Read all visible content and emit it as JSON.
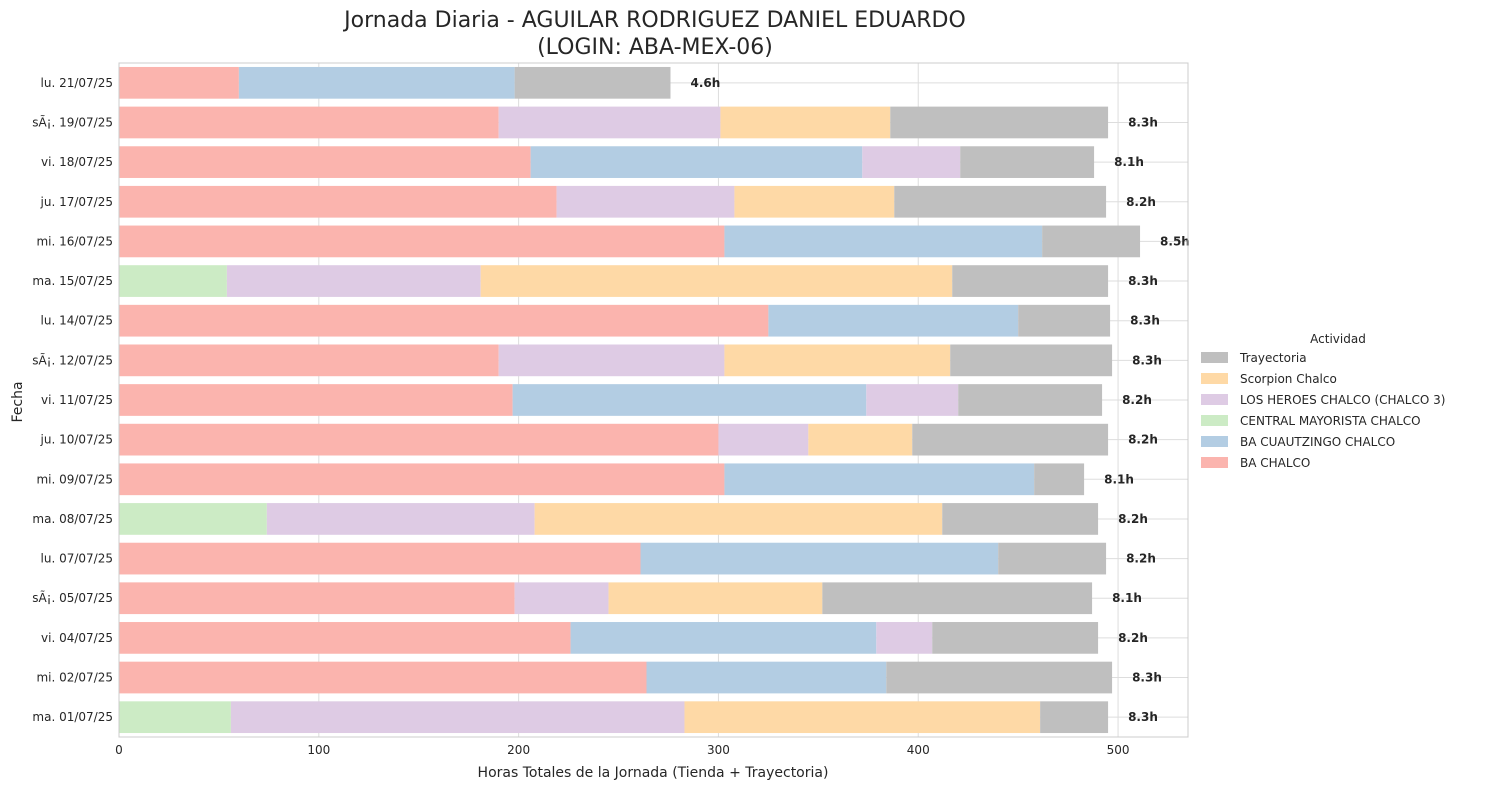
{
  "chart_data": {
    "type": "bar",
    "orientation": "horizontal",
    "stacked": true,
    "title": "Jornada Diaria - AGUILAR RODRIGUEZ DANIEL EDUARDO",
    "subtitle": "(LOGIN: ABA-MEX-06)",
    "xlabel": "Horas Totales de la Jornada (Tienda + Trayectoria)",
    "ylabel": "Fecha",
    "xlim": [
      0,
      535
    ],
    "xticks": [
      0,
      100,
      200,
      300,
      400,
      500
    ],
    "grid": true,
    "legend": {
      "title": "Actividad",
      "placement": "right",
      "order": [
        "Trayectoria",
        "Scorpion Chalco",
        "LOS HEROES CHALCO (CHALCO 3)",
        "CENTRAL MAYORISTA CHALCO",
        "BA CUAUTZINGO CHALCO",
        "BA CHALCO"
      ]
    },
    "colors": {
      "BA CHALCO": "#fbb4ae",
      "BA CUAUTZINGO CHALCO": "#b3cde3",
      "CENTRAL MAYORISTA CHALCO": "#ccebc5",
      "LOS HEROES CHALCO (CHALCO 3)": "#decbe4",
      "Scorpion Chalco": "#fed9a6",
      "Trayectoria": "#bfbfbf"
    },
    "stack_order": [
      "CENTRAL MAYORISTA CHALCO",
      "BA CHALCO",
      "BA CUAUTZINGO CHALCO",
      "LOS HEROES CHALCO (CHALCO 3)",
      "Scorpion Chalco",
      "Trayectoria"
    ],
    "categories": [
      "lu. 21/07/25",
      "sÃ¡. 19/07/25",
      "vi. 18/07/25",
      "ju. 17/07/25",
      "mi. 16/07/25",
      "ma. 15/07/25",
      "lu. 14/07/25",
      "sÃ¡. 12/07/25",
      "vi. 11/07/25",
      "ju. 10/07/25",
      "mi. 09/07/25",
      "ma. 08/07/25",
      "lu. 07/07/25",
      "sÃ¡. 05/07/25",
      "vi. 04/07/25",
      "mi. 02/07/25",
      "ma. 01/07/25"
    ],
    "totals_labels": [
      "4.6h",
      "8.3h",
      "8.1h",
      "8.2h",
      "8.5h",
      "8.3h",
      "8.3h",
      "8.3h",
      "8.2h",
      "8.2h",
      "8.1h",
      "8.2h",
      "8.2h",
      "8.1h",
      "8.2h",
      "8.3h",
      "8.3h"
    ],
    "series": [
      {
        "name": "CENTRAL MAYORISTA CHALCO",
        "values": [
          0,
          0,
          0,
          0,
          0,
          54,
          0,
          0,
          0,
          0,
          0,
          74,
          0,
          0,
          0,
          0,
          56
        ]
      },
      {
        "name": "BA CHALCO",
        "values": [
          60,
          190,
          206,
          219,
          303,
          0,
          325,
          190,
          197,
          300,
          303,
          0,
          261,
          198,
          226,
          264,
          0
        ]
      },
      {
        "name": "BA CUAUTZINGO CHALCO",
        "values": [
          138,
          0,
          166,
          0,
          159,
          0,
          125,
          0,
          177,
          0,
          155,
          0,
          179,
          0,
          153,
          120,
          0
        ]
      },
      {
        "name": "LOS HEROES CHALCO (CHALCO 3)",
        "values": [
          0,
          111,
          49,
          89,
          0,
          127,
          0,
          113,
          46,
          45,
          0,
          134,
          0,
          47,
          28,
          0,
          227
        ]
      },
      {
        "name": "Scorpion Chalco",
        "values": [
          0,
          85,
          0,
          80,
          0,
          236,
          0,
          113,
          0,
          52,
          0,
          204,
          0,
          107,
          0,
          0,
          178
        ]
      },
      {
        "name": "Trayectoria",
        "values": [
          78,
          109,
          67,
          106,
          49,
          78,
          46,
          81,
          72,
          98,
          25,
          78,
          54,
          135,
          83,
          113,
          34
        ]
      }
    ]
  }
}
